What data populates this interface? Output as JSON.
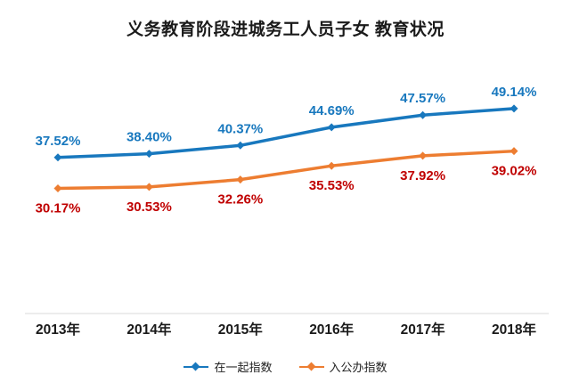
{
  "chart_data": {
    "type": "line",
    "title": "义务教育阶段进城务工人员子女 教育状况",
    "categories": [
      "2013年",
      "2014年",
      "2015年",
      "2016年",
      "2017年",
      "2018年"
    ],
    "series": [
      {
        "name": "在一起指数",
        "values": [
          37.52,
          38.4,
          40.37,
          44.69,
          47.57,
          49.14
        ],
        "color": "#1878BE",
        "label_color": "#1878BE",
        "label_position": "above"
      },
      {
        "name": "入公办指数",
        "values": [
          30.17,
          30.53,
          32.26,
          35.53,
          37.92,
          39.02
        ],
        "color": "#ED7D31",
        "label_color": "#C00000",
        "label_position": "below"
      }
    ],
    "value_suffix": "%",
    "ylim": [
      25,
      55
    ],
    "grid": false,
    "legend_position": "bottom"
  }
}
